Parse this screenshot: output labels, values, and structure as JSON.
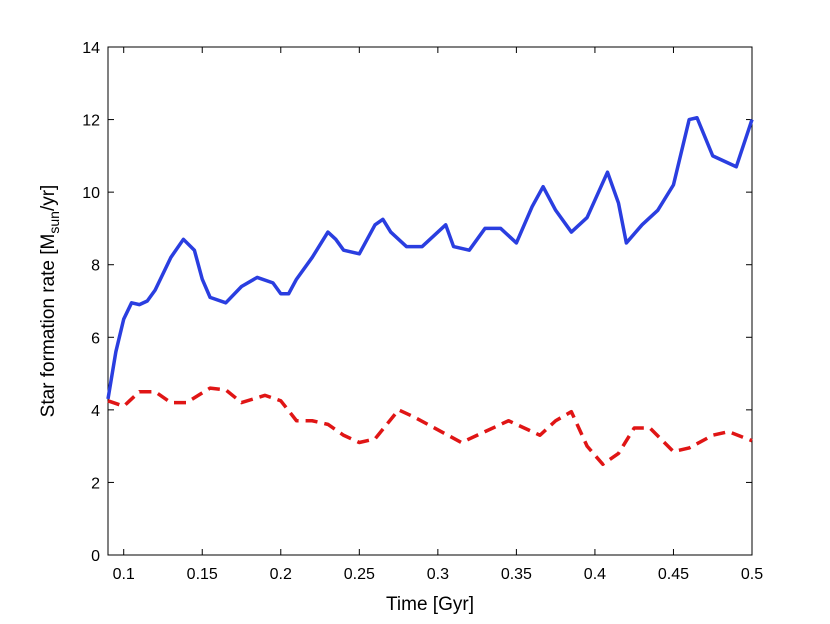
{
  "chart_data": {
    "type": "line",
    "xlabel": "Time [Gyr]",
    "ylabel": [
      "Star formation rate [M",
      "sun",
      "/yr]"
    ],
    "xlim": [
      0.09,
      0.5
    ],
    "xticks": [
      0.1,
      0.15,
      0.2,
      0.25,
      0.3,
      0.35,
      0.4,
      0.45,
      0.5
    ],
    "ylim": [
      0,
      14
    ],
    "yticks": [
      0,
      2,
      4,
      6,
      8,
      10,
      12,
      14
    ],
    "grid": false,
    "series": [
      {
        "color": "#2a3ee0",
        "dash": false,
        "x": [
          0.09,
          0.095,
          0.1,
          0.105,
          0.11,
          0.115,
          0.12,
          0.13,
          0.138,
          0.145,
          0.15,
          0.155,
          0.165,
          0.175,
          0.185,
          0.195,
          0.2,
          0.205,
          0.21,
          0.22,
          0.23,
          0.235,
          0.24,
          0.25,
          0.26,
          0.265,
          0.27,
          0.28,
          0.29,
          0.3,
          0.305,
          0.31,
          0.32,
          0.33,
          0.34,
          0.35,
          0.36,
          0.367,
          0.375,
          0.385,
          0.395,
          0.408,
          0.415,
          0.42,
          0.43,
          0.44,
          0.45,
          0.46,
          0.465,
          0.475,
          0.49,
          0.5
        ],
        "values": [
          4.3,
          5.6,
          6.5,
          6.95,
          6.9,
          7.0,
          7.3,
          8.2,
          8.7,
          8.4,
          7.6,
          7.1,
          6.95,
          7.4,
          7.65,
          7.5,
          7.2,
          7.2,
          7.6,
          8.2,
          8.9,
          8.7,
          8.4,
          8.3,
          9.1,
          9.25,
          8.9,
          8.5,
          8.5,
          8.9,
          9.1,
          8.5,
          8.4,
          9.0,
          9.0,
          8.6,
          9.6,
          10.15,
          9.5,
          8.9,
          9.3,
          10.55,
          9.7,
          8.6,
          9.1,
          9.5,
          10.2,
          12.0,
          12.05,
          11.0,
          10.7,
          12.0
        ]
      },
      {
        "color": "#e01515",
        "dash": true,
        "x": [
          0.09,
          0.1,
          0.11,
          0.12,
          0.13,
          0.14,
          0.155,
          0.165,
          0.175,
          0.19,
          0.2,
          0.21,
          0.22,
          0.23,
          0.24,
          0.25,
          0.26,
          0.275,
          0.285,
          0.3,
          0.315,
          0.33,
          0.345,
          0.355,
          0.365,
          0.375,
          0.385,
          0.395,
          0.405,
          0.415,
          0.425,
          0.435,
          0.45,
          0.46,
          0.475,
          0.485,
          0.5
        ],
        "values": [
          4.25,
          4.1,
          4.5,
          4.5,
          4.2,
          4.2,
          4.6,
          4.55,
          4.2,
          4.4,
          4.25,
          3.7,
          3.7,
          3.6,
          3.3,
          3.1,
          3.2,
          4.0,
          3.8,
          3.45,
          3.1,
          3.4,
          3.7,
          3.5,
          3.3,
          3.7,
          3.95,
          3.0,
          2.5,
          2.8,
          3.5,
          3.5,
          2.85,
          2.95,
          3.3,
          3.4,
          3.15
        ]
      }
    ]
  }
}
